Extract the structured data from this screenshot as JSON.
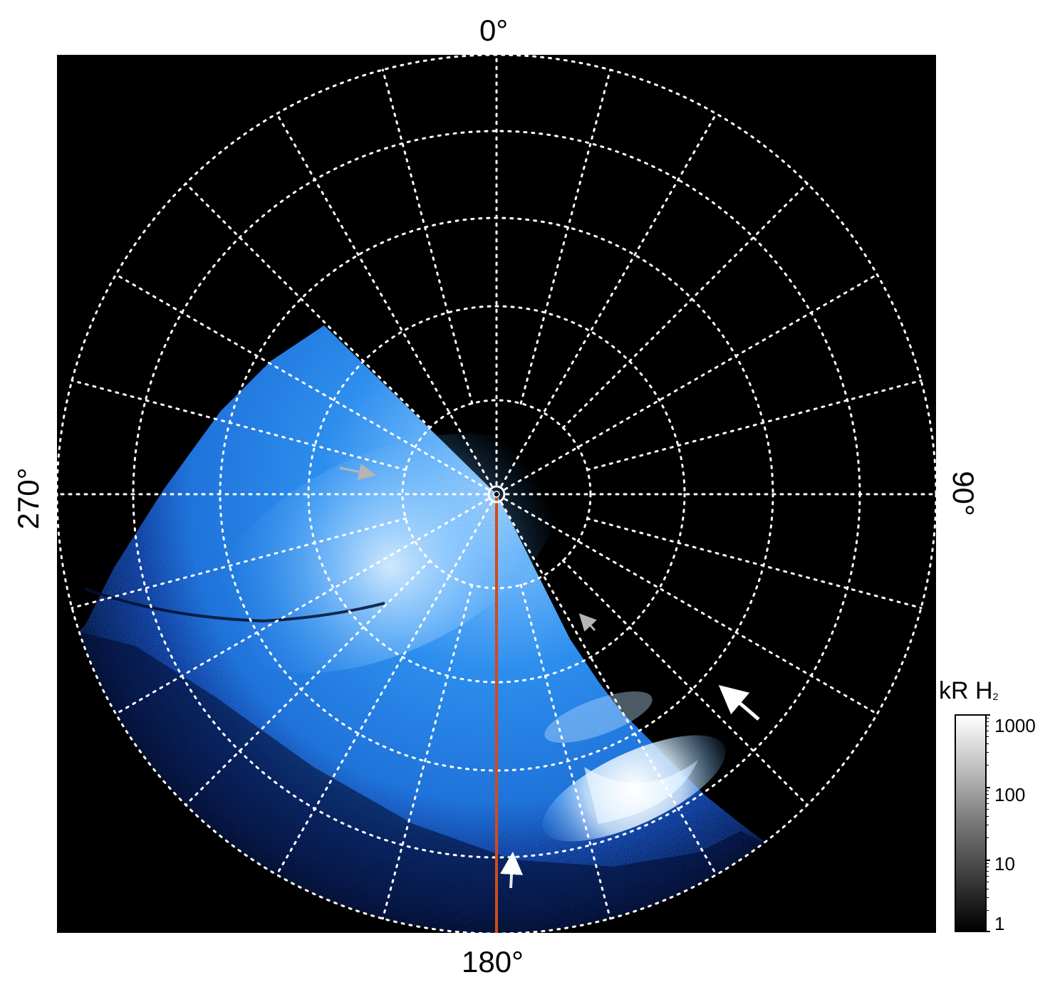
{
  "axis_labels": {
    "top": "0°",
    "right": "90°",
    "bottom": "180°",
    "left": "270°"
  },
  "colorbar": {
    "title": "kR H",
    "title_subscript": "2",
    "ticks": [
      "1000",
      "100",
      "10",
      "1"
    ]
  },
  "colors": {
    "background": "#000000",
    "grid": "#ffffff",
    "meridian_line": "#d24a1a",
    "aurora_blue": "#1f7fe0",
    "aurora_peak": "#ffffff",
    "arrow_white": "#ffffff",
    "arrow_grey": "#b5b5b5"
  },
  "annotations": [
    {
      "name": "white-arrow",
      "description_color": "white"
    },
    {
      "name": "grey-arrow-upper-left",
      "description_color": "grey"
    },
    {
      "name": "grey-arrow-middle",
      "description_color": "grey"
    },
    {
      "name": "white-arrow-bottom",
      "description_color": "white"
    }
  ]
}
